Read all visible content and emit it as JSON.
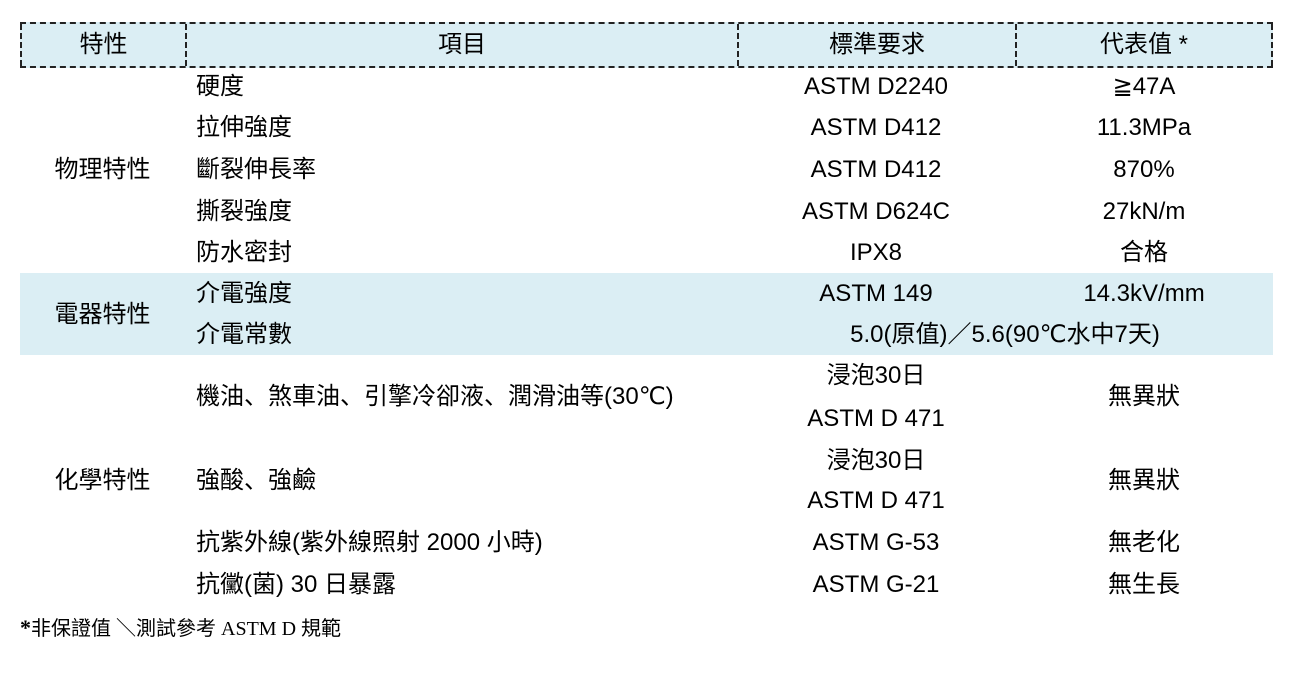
{
  "header": {
    "characteristic": "特性",
    "item": "項目",
    "standard": "標準要求",
    "value": "代表值 *"
  },
  "groups": [
    {
      "category": "物理特性",
      "rows": [
        {
          "item": "硬度",
          "standard": "ASTM D2240",
          "value": "≧47A"
        },
        {
          "item": "拉伸強度",
          "standard": "ASTM D412",
          "value": "11.3MPa"
        },
        {
          "item": "斷裂伸長率",
          "standard": "ASTM D412",
          "value": "870%"
        },
        {
          "item": "撕裂強度",
          "standard": "ASTM D624C",
          "value": "27kN/m"
        },
        {
          "item": "防水密封",
          "standard": "IPX8",
          "value": "合格"
        }
      ]
    },
    {
      "category": "電器特性",
      "rows": [
        {
          "item": "介電強度",
          "standard": "ASTM 149",
          "value": "14.3kV/mm"
        },
        {
          "item": "介電常數",
          "merged": "5.0(原值)／5.6(90℃水中7天)"
        }
      ]
    },
    {
      "category": "化學特性",
      "rows": [
        {
          "item": "機油、煞車油、引擎冷卻液、潤滑油等(30℃)",
          "standard_line1": "浸泡30日",
          "standard_line2": "ASTM D 471",
          "value": "無異狀"
        },
        {
          "item": "強酸、強鹼",
          "standard_line1": "浸泡30日",
          "standard_line2": "ASTM D 471",
          "value": "無異狀"
        },
        {
          "item": "抗紫外線(紫外線照射 2000 小時)",
          "standard": "ASTM G-53",
          "value": "無老化"
        },
        {
          "item": "抗黴(菌) 30 日暴露",
          "standard": "ASTM G-21",
          "value": "無生長"
        }
      ]
    }
  ],
  "footnote": {
    "star": "*",
    "text": "非保證值 ＼測試參考 ASTM D 規範"
  },
  "colors": {
    "header_bg": "#dbeef4",
    "band_bg": "#dbeef4"
  }
}
